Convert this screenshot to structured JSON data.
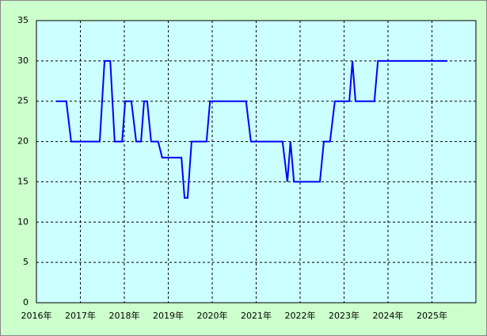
{
  "chart_data": {
    "type": "line",
    "x": [
      2016.45,
      2016.68,
      2016.79,
      2017.44,
      2017.55,
      2017.68,
      2017.78,
      2017.95,
      2018.02,
      2018.16,
      2018.27,
      2018.38,
      2018.45,
      2018.52,
      2018.61,
      2018.77,
      2018.86,
      2019.3,
      2019.37,
      2019.44,
      2019.53,
      2019.87,
      2019.95,
      2020.77,
      2020.88,
      2021.6,
      2021.71,
      2021.78,
      2021.86,
      2022.45,
      2022.54,
      2022.68,
      2022.79,
      2023.12,
      2023.19,
      2023.26,
      2023.69,
      2023.77,
      2025.35
    ],
    "values": [
      25,
      25,
      20,
      20,
      30,
      30,
      20,
      20,
      25,
      25,
      20,
      20,
      25,
      25,
      20,
      20,
      18,
      18,
      13,
      13,
      20,
      20,
      25,
      25,
      20,
      20,
      15,
      20,
      15,
      15,
      20,
      20,
      25,
      25,
      30,
      25,
      25,
      30,
      30
    ],
    "color": "#0000ff",
    "xlim": [
      2016,
      2026
    ],
    "xticks": [
      {
        "value": 2016,
        "label": "2016年"
      },
      {
        "value": 2017,
        "label": "2017年"
      },
      {
        "value": 2018,
        "label": "2018年"
      },
      {
        "value": 2019,
        "label": "2019年"
      },
      {
        "value": 2020,
        "label": "2020年"
      },
      {
        "value": 2021,
        "label": "2021年"
      },
      {
        "value": 2022,
        "label": "2022年"
      },
      {
        "value": 2023,
        "label": "2023年"
      },
      {
        "value": 2024,
        "label": "2024年"
      },
      {
        "value": 2025,
        "label": "2025年"
      }
    ],
    "ylim": [
      0,
      35
    ],
    "yticks": [
      0,
      5,
      10,
      15,
      20,
      25,
      30,
      35
    ],
    "grid": true
  }
}
